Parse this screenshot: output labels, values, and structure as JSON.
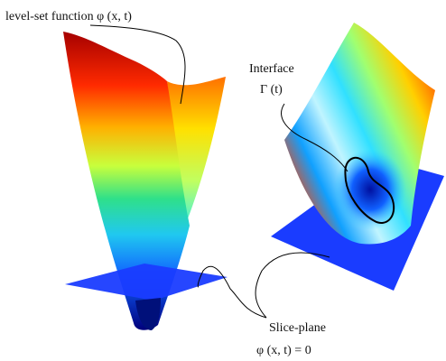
{
  "labels": {
    "level_set": "level-set function φ (x, t)",
    "interface": "Interface",
    "interface_symbol": "Γ (t)",
    "slice_plane": "Slice-plane",
    "slice_equation": "φ (x, t) = 0"
  }
}
